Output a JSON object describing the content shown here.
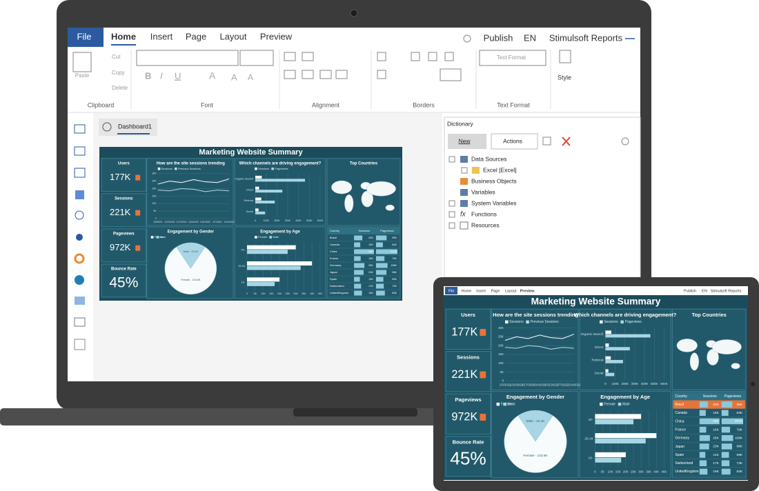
{
  "app": {
    "tabs": [
      "File",
      "Home",
      "Insert",
      "Page",
      "Layout",
      "Preview"
    ],
    "publish": "Publish",
    "language": "EN",
    "brand": "Stimulsoft Reports",
    "ribbon": {
      "clipboard": {
        "label": "Clipboard",
        "paste": "Paste",
        "cut": "Cut",
        "copy": "Copy",
        "delete": "Delete"
      },
      "font": "Font",
      "alignment": "Alignment",
      "borders": "Borders",
      "text_format": {
        "label": "Text Format",
        "placeholder": "Text Format"
      },
      "style": "Style"
    },
    "document_tab": "Dashboard1",
    "dictionary": {
      "title": "Dictionary",
      "new": "New",
      "actions": "Actions",
      "tree": [
        {
          "label": "Data Sources",
          "children": [
            "Excel [Excel]"
          ]
        },
        {
          "label": "Business Objects"
        },
        {
          "label": "Variables"
        },
        {
          "label": "System Variables"
        },
        {
          "label": "Functions"
        },
        {
          "label": "Resources"
        }
      ]
    }
  },
  "dashboard": {
    "title": "Marketing Website Summary",
    "kpis": [
      {
        "label": "Users",
        "value": "177K"
      },
      {
        "label": "Sessions",
        "value": "221K"
      },
      {
        "label": "Pageviews",
        "value": "972K"
      },
      {
        "label": "Bounce Rate",
        "value": "45%"
      }
    ],
    "sessions_trend": {
      "type": "line",
      "title": "How are the site sessions trending",
      "x": [
        "1/3/2022",
        "1/10/2022",
        "1/17/2022",
        "1/24/2022",
        "1/31/2022",
        "2/7/2022",
        "2/14/2022"
      ],
      "series": [
        {
          "name": "Sessions",
          "color": "#ffffff",
          "values": [
            23000,
            25000,
            24000,
            26000,
            24500,
            24000,
            26500
          ]
        },
        {
          "name": "Previous Sessions",
          "color": "#bcdbe5",
          "values": [
            19000,
            18500,
            20000,
            19500,
            18000,
            19000,
            18500
          ]
        }
      ],
      "ylim": [
        0,
        30000
      ],
      "yticks": [
        0,
        {
          "value": 5000,
          "label": "5K"
        },
        {
          "value": 10000,
          "label": "10K"
        },
        {
          "value": 15000,
          "label": "15K"
        },
        {
          "value": 20000,
          "label": "20K"
        },
        {
          "value": 25000,
          "label": "25K"
        },
        {
          "value": 30000,
          "label": "30K"
        }
      ]
    },
    "channels": {
      "type": "bar",
      "title": "Which channels are driving engagement?",
      "categories": [
        "Organic Search",
        "Direct",
        "Referral",
        "Social"
      ],
      "series": [
        {
          "name": "Sessions",
          "color": "#ffffff",
          "values": [
            60000,
            35000,
            55000,
            30000
          ]
        },
        {
          "name": "Pageviews",
          "color": "#a8d6e4",
          "values": [
            460000,
            250000,
            180000,
            90000
          ]
        }
      ],
      "xlim": [
        0,
        600000
      ],
      "xticks": [
        0,
        {
          "value": 100000,
          "label": "100K"
        },
        {
          "value": 200000,
          "label": "200K"
        },
        {
          "value": 300000,
          "label": "300K"
        },
        {
          "value": 400000,
          "label": "400K"
        },
        {
          "value": 500000,
          "label": "500K"
        },
        {
          "value": 600000,
          "label": "600K"
        }
      ]
    },
    "map_title": "Top Countries",
    "gender": {
      "type": "pie",
      "title": "Engagement by Gender",
      "categories": [
        "Female",
        "Male"
      ],
      "colors": [
        "#f7fbfc",
        "#a8d6e4"
      ],
      "values": [
        143600,
        33400
      ],
      "value_labels": [
        "Female - 143.6K",
        "Male - 33.4K"
      ]
    },
    "age": {
      "type": "bar",
      "title": "Engagement by Age",
      "categories": [
        "40-",
        "25-34",
        "18-"
      ],
      "series": [
        {
          "name": "Female",
          "color": "#ffffff",
          "values": [
            30000,
            40000,
            20000
          ]
        },
        {
          "name": "Male",
          "color": "#a8d6e4",
          "values": [
            25000,
            33000,
            17000
          ]
        }
      ],
      "xlim": [
        0,
        45000
      ],
      "xticks": [
        0,
        {
          "value": 5000,
          "label": "5K"
        },
        {
          "value": 10000,
          "label": "10K"
        },
        {
          "value": 15000,
          "label": "15K"
        },
        {
          "value": 20000,
          "label": "20K"
        },
        {
          "value": 25000,
          "label": "25K"
        },
        {
          "value": 30000,
          "label": "30K"
        },
        {
          "value": 35000,
          "label": "35K"
        },
        {
          "value": 40000,
          "label": "40K"
        },
        {
          "value": 45000,
          "label": "45K"
        }
      ]
    },
    "table": {
      "columns": [
        "Country",
        "Sessions",
        "Pageviews"
      ],
      "countries": [
        "Brazil",
        "Canada",
        "China",
        "France",
        "Germany",
        "Japan",
        "Spain",
        "Switzerland",
        "UnitedKingdom"
      ],
      "sessions": [
        20000,
        15000,
        48000,
        16000,
        25000,
        23000,
        14000,
        17000,
        19000
      ],
      "sessions_labels": [
        "20K",
        "15K",
        "48K",
        "16K",
        "25K",
        "23K",
        "14K",
        "17K",
        "19K"
      ],
      "pageviews": [
        99000,
        64000,
        201000,
        79000,
        108000,
        98000,
        69000,
        73000,
        83000
      ],
      "pageviews_labels": [
        "99K",
        "64K",
        "201K",
        "79K",
        "108K",
        "98K",
        "69K",
        "73K",
        "83K"
      ]
    }
  }
}
